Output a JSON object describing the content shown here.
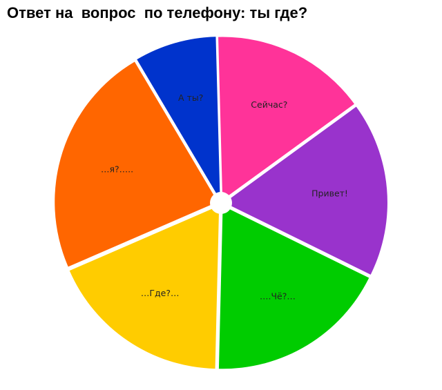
{
  "chart_data": {
    "type": "pie",
    "title": "Ответ на  вопрос  по телефону: ты где?",
    "slices": [
      {
        "label": "Сейчас?",
        "value": 15.4,
        "color": "#ff3399"
      },
      {
        "label": "Привет!",
        "value": 17.3,
        "color": "#9933cc"
      },
      {
        "label": "….Чё?…",
        "value": 18.1,
        "color": "#00cc00"
      },
      {
        "label": "…Где?…",
        "value": 18.1,
        "color": "#ffcc00"
      },
      {
        "label": "…я?…..",
        "value": 23.0,
        "color": "#ff6600"
      },
      {
        "label": "А ты?",
        "value": 8.1,
        "color": "#0033cc"
      }
    ]
  }
}
